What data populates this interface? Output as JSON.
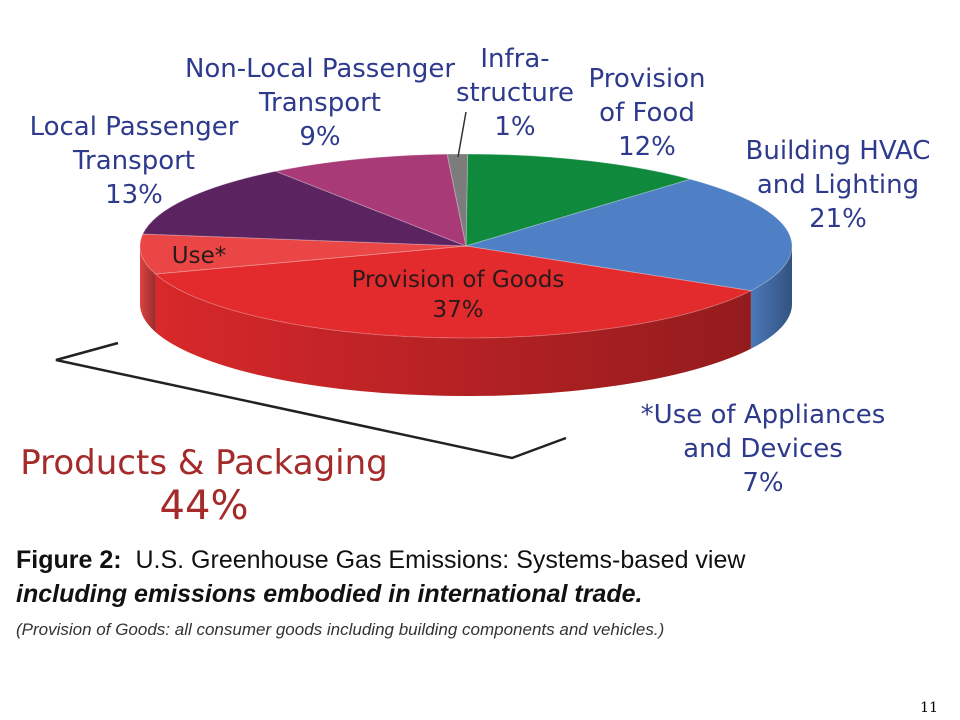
{
  "chart_data": {
    "type": "pie",
    "slices": [
      {
        "key": "food",
        "label": "Provision of Food",
        "value": 12,
        "color": "#0f8a3c"
      },
      {
        "key": "hvac",
        "label": "Building HVAC and Lighting",
        "value": 21,
        "color": "#4f7fc4"
      },
      {
        "key": "goods",
        "label": "Provision of Goods",
        "value": 37,
        "color": "#e32a2d"
      },
      {
        "key": "use",
        "label": "Use*",
        "value": 7,
        "color": "#e94645"
      },
      {
        "key": "local",
        "label": "Local Passenger Transport",
        "value": 13,
        "color": "#5b2360"
      },
      {
        "key": "nonlocal",
        "label": "Non-Local Passenger Transport",
        "value": 9,
        "color": "#a83a78"
      },
      {
        "key": "infra",
        "label": "Infrastructure",
        "value": 1,
        "color": "#7c7c7c"
      }
    ],
    "group": {
      "title": "Products & Packaging",
      "value": 44,
      "pct": "44%"
    }
  },
  "labels": {
    "food": {
      "line1": "Provision",
      "line2": "of Food",
      "pct": "12%"
    },
    "hvac": {
      "line1": "Building HVAC",
      "line2": "and Lighting",
      "pct": "21%"
    },
    "goods": {
      "line1": "Provision of Goods",
      "pct": "37%"
    },
    "use_inner": "Use*",
    "use_note": {
      "line1": "*Use of Appliances",
      "line2": "and Devices",
      "pct": "7%"
    },
    "local": {
      "line1": "Local Passenger",
      "line2": "Transport",
      "pct": "13%"
    },
    "nonlocal": {
      "line1": "Non-Local Passenger",
      "line2": "Transport",
      "pct": "9%"
    },
    "infra": {
      "line1": "Infra-",
      "line2": "structure",
      "pct": "1%"
    }
  },
  "caption": {
    "fig_label": "Figure 2:",
    "line1": "U.S. Greenhouse Gas Emissions: Systems-based view",
    "line2": "including emissions embodied in international trade.",
    "line3": "(Provision of Goods: all consumer goods including building components and vehicles.)"
  },
  "page_number": "11"
}
